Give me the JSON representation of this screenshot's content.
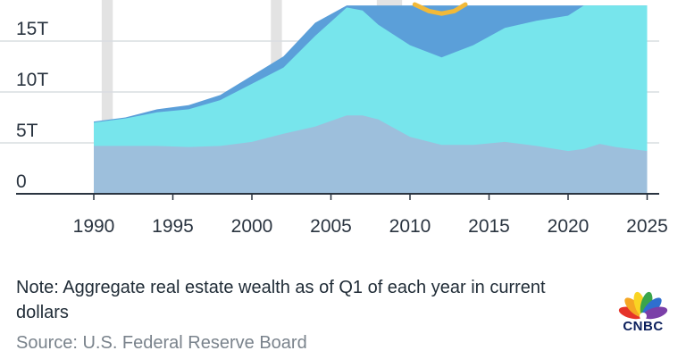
{
  "chart_data": {
    "type": "area",
    "title": "",
    "xlabel": "",
    "ylabel": "",
    "xlim": [
      1987,
      2026
    ],
    "ylim": [
      0,
      18.5
    ],
    "y_ticks": [
      0,
      5,
      10,
      15
    ],
    "y_tick_labels": [
      "0",
      "5T",
      "10T",
      "15T"
    ],
    "x_ticks": [
      1990,
      1995,
      2000,
      2005,
      2010,
      2015,
      2020,
      2025
    ],
    "x_tick_labels": [
      "1990",
      "1995",
      "2000",
      "2005",
      "2010",
      "2015",
      "2020",
      "2025"
    ],
    "recession_bands": [
      [
        1990.5,
        1991.2
      ],
      [
        2001.2,
        2001.9
      ],
      [
        2007.9,
        2009.5
      ]
    ],
    "x": [
      1990,
      1992,
      1994,
      1996,
      1998,
      2000,
      2002,
      2004,
      2006,
      2007,
      2008,
      2010,
      2012,
      2014,
      2016,
      2018,
      2020,
      2021,
      2022,
      2023,
      2025
    ],
    "series": [
      {
        "color": "#9dbfdc",
        "values": [
          4.7,
          4.7,
          4.7,
          4.6,
          4.7,
          5.1,
          5.9,
          6.6,
          7.7,
          7.7,
          7.3,
          5.6,
          4.8,
          4.8,
          5.1,
          4.7,
          4.2,
          4.4,
          4.9,
          4.6,
          4.2
        ]
      },
      {
        "color": "#77e5ec",
        "values": [
          7.0,
          7.4,
          8.0,
          8.3,
          9.2,
          10.8,
          12.4,
          15.5,
          18.3,
          18.0,
          16.6,
          14.6,
          13.4,
          14.6,
          16.3,
          17.0,
          17.5,
          18.5,
          18.5,
          18.5,
          18.5
        ]
      },
      {
        "color": "#5b9fd9",
        "values": [
          7.1,
          7.5,
          8.3,
          8.7,
          9.7,
          11.6,
          13.5,
          16.8,
          18.5,
          18.5,
          18.5,
          18.5,
          18.5,
          18.5,
          18.5,
          18.5,
          18.5,
          18.5,
          18.5,
          18.5,
          18.5
        ]
      }
    ]
  },
  "footer": {
    "note": "Note: Aggregate real estate wealth as of Q1 of each year in current dollars",
    "source": "Source: U.S. Federal Reserve Board",
    "logo_text": "CNBC"
  },
  "colors": {
    "gold_line": "#f2b938",
    "axis": "#2a3440",
    "grid": "#d9dde1",
    "recession_band": "#e3e3e3"
  }
}
